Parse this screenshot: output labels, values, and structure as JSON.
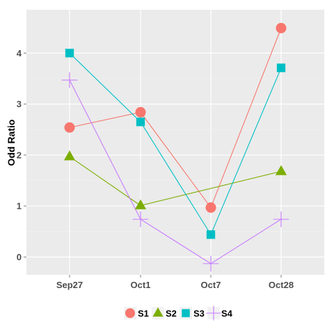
{
  "chart_data": {
    "type": "line",
    "categories": [
      "Sep27",
      "Oct1",
      "Oct7",
      "Oct28"
    ],
    "ylabel": "Odd Ratio",
    "xlabel": "",
    "ylim": [
      -0.35,
      4.85
    ],
    "yticks": [
      0,
      1,
      2,
      3,
      4
    ],
    "grid": true,
    "legend_position": "bottom",
    "series": [
      {
        "name": "S1",
        "values": [
          2.54,
          2.84,
          0.97,
          4.49
        ],
        "color": "#F8766D",
        "marker": "circle"
      },
      {
        "name": "S2",
        "values": [
          1.97,
          1.01,
          null,
          1.68
        ],
        "color": "#7CAE00",
        "marker": "triangle"
      },
      {
        "name": "S3",
        "values": [
          4.0,
          2.65,
          0.44,
          3.71
        ],
        "color": "#00BFC4",
        "marker": "square"
      },
      {
        "name": "S4",
        "values": [
          3.47,
          0.74,
          -0.13,
          0.74
        ],
        "color": "#C77CFF",
        "marker": "plus"
      }
    ]
  }
}
